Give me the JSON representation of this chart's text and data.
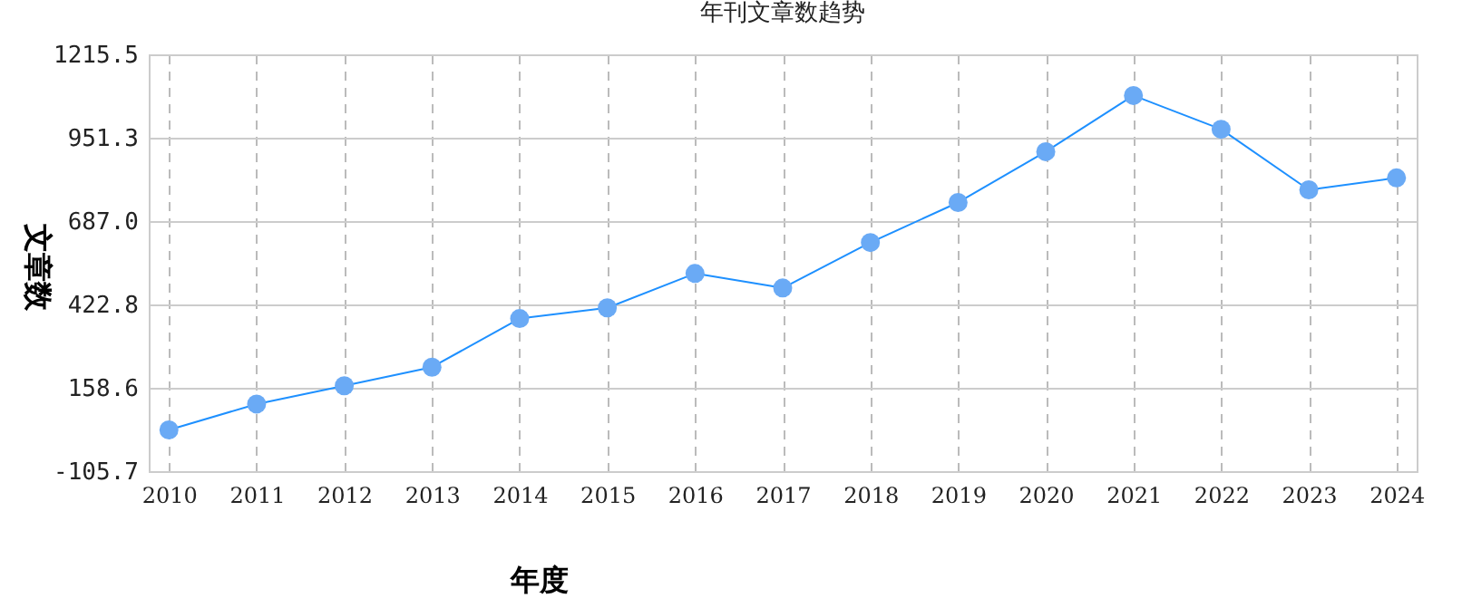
{
  "chart_data": {
    "type": "line",
    "title": "年刊文章数趋势",
    "xlabel": "年度",
    "ylabel": "文章数",
    "categories": [
      "2010",
      "2011",
      "2012",
      "2013",
      "2014",
      "2015",
      "2016",
      "2017",
      "2018",
      "2019",
      "2020",
      "2021",
      "2022",
      "2023",
      "2024"
    ],
    "series": [
      {
        "color": "#1e90ff",
        "values": [
          25,
          107,
          165,
          224,
          378,
          412,
          521,
          475,
          619,
          746,
          907,
          1085,
          978,
          786,
          824
        ]
      }
    ],
    "ylim": [
      -105.7,
      1215.5
    ],
    "yticks": [
      {
        "value": -105.7,
        "label": "-105.7"
      },
      {
        "value": 158.6,
        "label": "158.6"
      },
      {
        "value": 422.8,
        "label": "422.8"
      },
      {
        "value": 687,
        "label": "687.0"
      },
      {
        "value": 951.3,
        "label": "951.3"
      },
      {
        "value": 1215.5,
        "label": "1215.5"
      }
    ],
    "grid": true,
    "marker": "circle",
    "line_style": "solid"
  }
}
